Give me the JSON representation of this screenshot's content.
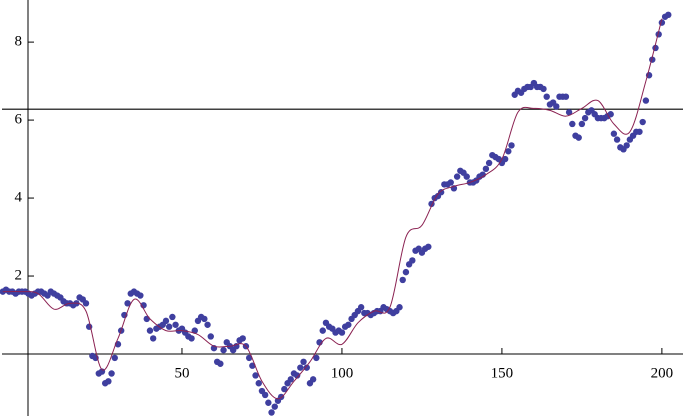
{
  "chart_data": {
    "type": "scatter",
    "xlim": [
      -6.25,
      206.6
    ],
    "ylim": [
      -1.59,
      9.08
    ],
    "xticks": [
      50,
      100,
      150,
      200
    ],
    "yticks": [
      2,
      4,
      6,
      8
    ],
    "hline": 6.28,
    "series": [
      {
        "color": "#3f3f9f",
        "x": [
          -6,
          -5,
          -4,
          -3,
          -2,
          -1,
          0,
          1,
          2,
          3,
          4,
          5,
          6,
          7,
          8,
          9,
          10,
          11,
          12,
          13,
          14,
          15,
          16,
          17,
          18,
          19,
          20,
          21,
          22,
          23,
          24,
          25,
          26,
          27,
          28,
          29,
          30,
          31,
          32,
          33,
          34,
          35,
          36,
          37,
          38,
          39,
          40,
          41,
          42,
          43,
          44,
          45,
          46,
          47,
          48,
          49,
          50,
          51,
          52,
          53,
          54,
          55,
          56,
          57,
          58,
          59,
          60,
          61,
          62,
          63,
          64,
          65,
          66,
          67,
          68,
          69,
          70,
          71,
          72,
          73,
          74,
          75,
          76,
          77,
          78,
          79,
          80,
          81,
          82,
          83,
          84,
          85,
          86,
          87,
          88,
          89,
          90,
          91,
          92,
          93,
          94,
          95,
          96,
          97,
          98,
          99,
          100,
          101,
          102,
          103,
          104,
          105,
          106,
          107,
          108,
          109,
          110,
          111,
          112,
          113,
          114,
          115,
          116,
          117,
          118,
          119,
          120,
          121,
          122,
          123,
          124,
          125,
          126,
          127,
          128,
          129,
          130,
          131,
          132,
          133,
          134,
          135,
          136,
          137,
          138,
          139,
          140,
          141,
          142,
          143,
          144,
          145,
          146,
          147,
          148,
          149,
          150,
          151,
          152,
          153,
          154,
          155,
          156,
          157,
          158,
          159,
          160,
          161,
          162,
          163,
          164,
          165,
          166,
          167,
          168,
          169,
          170,
          171,
          172,
          173,
          174,
          175,
          176,
          177,
          178,
          179,
          180,
          181,
          182,
          183,
          184,
          185,
          186,
          187,
          188,
          189,
          190,
          191,
          192,
          193,
          194,
          195,
          196,
          197,
          198,
          199,
          200,
          201,
          202
        ],
        "values": [
          1.6,
          1.65,
          1.6,
          1.6,
          1.55,
          1.6,
          1.6,
          1.6,
          1.55,
          1.5,
          1.55,
          1.6,
          1.6,
          1.55,
          1.5,
          1.6,
          1.55,
          1.5,
          1.45,
          1.35,
          1.3,
          1.3,
          1.25,
          1.3,
          1.45,
          1.4,
          1.3,
          0.7,
          -0.05,
          -0.1,
          -0.5,
          -0.45,
          -0.75,
          -0.7,
          -0.5,
          -0.1,
          0.25,
          0.6,
          1.0,
          1.3,
          1.55,
          1.6,
          1.55,
          1.5,
          1.25,
          0.9,
          0.6,
          0.4,
          0.65,
          0.7,
          0.75,
          0.85,
          0.7,
          0.95,
          0.75,
          0.6,
          0.65,
          0.55,
          0.45,
          0.4,
          0.6,
          0.85,
          0.95,
          0.9,
          0.75,
          0.45,
          0.15,
          -0.2,
          -0.25,
          0.1,
          0.3,
          0.2,
          0.1,
          0.2,
          0.35,
          0.4,
          0.2,
          -0.1,
          -0.3,
          -0.55,
          -0.75,
          -0.95,
          -1.05,
          -1.25,
          -1.5,
          -1.35,
          -1.2,
          -1.1,
          -0.9,
          -0.75,
          -0.65,
          -0.5,
          -0.55,
          -0.35,
          -0.2,
          -0.35,
          -0.75,
          -0.65,
          -0.1,
          0.3,
          0.6,
          0.8,
          0.7,
          0.65,
          0.55,
          0.6,
          0.55,
          0.7,
          0.75,
          0.9,
          1.0,
          1.1,
          1.2,
          1.05,
          1.05,
          1.0,
          1.05,
          1.1,
          1.1,
          1.2,
          1.15,
          1.1,
          1.05,
          1.1,
          1.2,
          1.9,
          2.1,
          2.3,
          2.4,
          2.65,
          2.7,
          2.6,
          2.7,
          2.75,
          3.85,
          4.0,
          4.05,
          4.15,
          4.35,
          4.35,
          4.4,
          4.25,
          4.55,
          4.7,
          4.65,
          4.55,
          4.4,
          4.4,
          4.45,
          4.55,
          4.6,
          4.75,
          4.9,
          5.1,
          5.05,
          5.0,
          4.9,
          5.0,
          5.2,
          5.35,
          6.65,
          6.75,
          6.7,
          6.8,
          6.85,
          6.85,
          6.95,
          6.85,
          6.85,
          6.8,
          6.6,
          6.4,
          6.45,
          6.35,
          6.6,
          6.6,
          6.6,
          6.2,
          5.9,
          5.6,
          5.55,
          5.9,
          6.05,
          6.2,
          6.25,
          6.15,
          6.05,
          6.05,
          6.05,
          6.1,
          6.15,
          5.65,
          5.5,
          5.3,
          5.25,
          5.35,
          5.5,
          5.6,
          5.7,
          5.7,
          5.95,
          6.5,
          7.15,
          7.55,
          7.85,
          8.2,
          8.5,
          8.65,
          8.7
        ]
      },
      {
        "color": "#8b2252",
        "style": "line",
        "x": [
          -6,
          0,
          5,
          10,
          15,
          20,
          25,
          30,
          35,
          40,
          45,
          50,
          55,
          60,
          65,
          70,
          75,
          80,
          85,
          90,
          95,
          100,
          105,
          110,
          115,
          120,
          125,
          130,
          135,
          140,
          145,
          150,
          155,
          160,
          165,
          170,
          175,
          180,
          185,
          190,
          195,
          200
        ],
        "values": [
          1.6,
          1.6,
          1.55,
          1.15,
          1.3,
          1.1,
          -0.4,
          0.4,
          1.4,
          0.9,
          0.6,
          0.6,
          0.5,
          0.2,
          0.2,
          0.2,
          -0.7,
          -1.15,
          -0.7,
          -0.2,
          0.4,
          0.25,
          0.8,
          1.1,
          1.2,
          3.0,
          3.3,
          4.1,
          4.3,
          4.4,
          4.6,
          5.0,
          6.2,
          6.3,
          6.25,
          6.1,
          6.3,
          6.5,
          5.9,
          5.7,
          7.0,
          8.6
        ]
      }
    ]
  }
}
